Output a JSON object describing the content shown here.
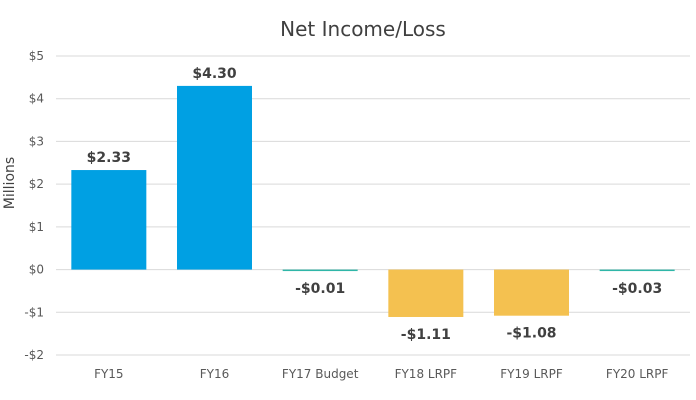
{
  "chart_data": {
    "type": "bar",
    "title": "Net Income/Loss",
    "ylabel": "Millions",
    "xlabel": "",
    "categories": [
      "FY15",
      "FY16",
      "FY17 Budget",
      "FY18 LRPF",
      "FY19 LRPF",
      "FY20 LRPF"
    ],
    "values": [
      2.33,
      4.3,
      -0.01,
      -1.11,
      -1.08,
      -0.03
    ],
    "data_labels": [
      "$2.33",
      "$4.30",
      "-$0.01",
      "-$1.11",
      "-$1.08",
      "-$0.03"
    ],
    "ylim": [
      -2,
      5
    ],
    "yticks": [
      5,
      4,
      3,
      2,
      1,
      0,
      -1,
      -2
    ],
    "ytick_labels": [
      "$5",
      "$4",
      "$3",
      "$2",
      "$1",
      "$0",
      "-$1",
      "-$2"
    ],
    "grid": true,
    "legend": "none",
    "colors": {
      "positive": "#00a0e3",
      "negative": "#f4c150",
      "near_zero": "#2fb6a8"
    }
  }
}
